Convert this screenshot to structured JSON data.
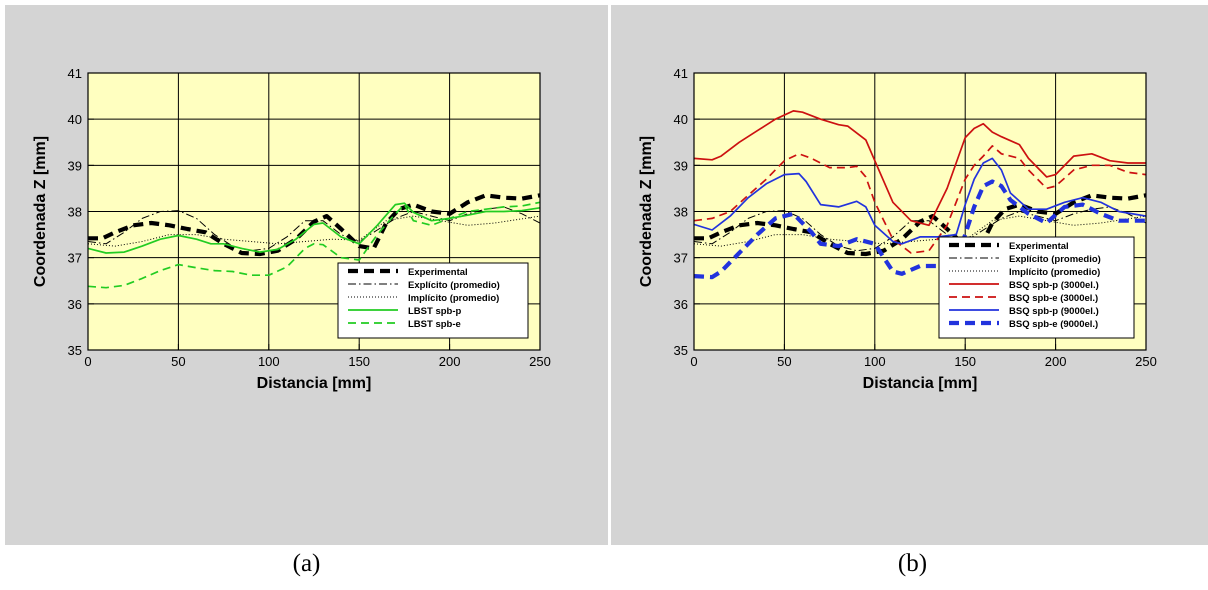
{
  "chart_data": [
    {
      "type": "line",
      "caption": "(a)",
      "xlabel": "Distancia [mm]",
      "ylabel": "Coordenada Z [mm]",
      "xlim": [
        0,
        250
      ],
      "ylim": [
        35,
        41
      ],
      "xticks": [
        0,
        50,
        100,
        150,
        200,
        250
      ],
      "yticks": [
        35,
        36,
        37,
        38,
        39,
        40,
        41
      ],
      "grid": true,
      "legend_position": "bottom-right",
      "colors": {
        "plot_background": "#ffffc0",
        "panel_background": "#d4d4d4"
      },
      "series": [
        {
          "name": "Experimental",
          "color": "#000000",
          "style": "dashed-thick",
          "x": [
            0,
            8,
            15,
            25,
            35,
            45,
            55,
            65,
            75,
            85,
            95,
            105,
            115,
            125,
            132,
            140,
            150,
            158,
            165,
            172,
            180,
            190,
            200,
            210,
            220,
            230,
            240,
            250
          ],
          "y": [
            37.42,
            37.42,
            37.55,
            37.7,
            37.75,
            37.7,
            37.62,
            37.55,
            37.3,
            37.1,
            37.08,
            37.15,
            37.4,
            37.78,
            37.9,
            37.62,
            37.25,
            37.2,
            37.75,
            38.05,
            38.15,
            38.0,
            37.95,
            38.2,
            38.35,
            38.3,
            38.28,
            38.35
          ]
        },
        {
          "name": "Explícito (promedio)",
          "color": "#000000",
          "style": "dash-dot",
          "x": [
            0,
            10,
            20,
            30,
            40,
            50,
            60,
            70,
            80,
            90,
            100,
            110,
            120,
            130,
            140,
            150,
            160,
            170,
            180,
            190,
            200,
            210,
            220,
            230,
            240,
            250
          ],
          "y": [
            37.35,
            37.3,
            37.55,
            37.85,
            38.0,
            38.02,
            37.85,
            37.5,
            37.25,
            37.15,
            37.2,
            37.45,
            37.8,
            37.8,
            37.5,
            37.35,
            37.6,
            37.85,
            38.0,
            37.9,
            37.8,
            37.95,
            38.05,
            38.1,
            37.95,
            37.75
          ]
        },
        {
          "name": "Implícito (promedio)",
          "color": "#000000",
          "style": "dotted",
          "x": [
            0,
            15,
            30,
            45,
            60,
            75,
            90,
            105,
            120,
            135,
            150,
            165,
            180,
            195,
            210,
            225,
            250
          ],
          "y": [
            37.3,
            37.25,
            37.35,
            37.5,
            37.5,
            37.4,
            37.35,
            37.3,
            37.35,
            37.4,
            37.38,
            37.8,
            37.9,
            37.8,
            37.7,
            37.75,
            37.9
          ]
        },
        {
          "name": "LBST spb-p",
          "color": "#22cc22",
          "style": "solid",
          "x": [
            0,
            10,
            20,
            30,
            40,
            50,
            60,
            68,
            75,
            85,
            95,
            105,
            115,
            125,
            130,
            140,
            150,
            160,
            170,
            175,
            180,
            190,
            200,
            210,
            220,
            230,
            240,
            250
          ],
          "y": [
            37.2,
            37.1,
            37.12,
            37.25,
            37.4,
            37.48,
            37.4,
            37.3,
            37.3,
            37.2,
            37.12,
            37.18,
            37.4,
            37.72,
            37.75,
            37.45,
            37.3,
            37.7,
            38.15,
            38.18,
            37.98,
            37.8,
            37.85,
            37.92,
            38.0,
            38.0,
            38.02,
            38.08
          ]
        },
        {
          "name": "LBST spb-e",
          "color": "#22cc22",
          "style": "dashed",
          "x": [
            0,
            10,
            20,
            30,
            40,
            50,
            60,
            70,
            80,
            90,
            100,
            110,
            120,
            125,
            130,
            140,
            150,
            160,
            170,
            175,
            180,
            190,
            200,
            210,
            220,
            230,
            240,
            250
          ],
          "y": [
            36.38,
            36.35,
            36.4,
            36.55,
            36.72,
            36.85,
            36.78,
            36.72,
            36.7,
            36.62,
            36.62,
            36.8,
            37.2,
            37.3,
            37.28,
            37.0,
            36.95,
            37.5,
            37.95,
            38.15,
            37.8,
            37.7,
            37.85,
            38.0,
            38.05,
            38.1,
            38.12,
            38.2
          ]
        }
      ]
    },
    {
      "type": "line",
      "caption": "(b)",
      "xlabel": "Distancia [mm]",
      "ylabel": "Coordenada Z [mm]",
      "xlim": [
        0,
        250
      ],
      "ylim": [
        35,
        41
      ],
      "xticks": [
        0,
        50,
        100,
        150,
        200,
        250
      ],
      "yticks": [
        35,
        36,
        37,
        38,
        39,
        40,
        41
      ],
      "grid": true,
      "legend_position": "bottom-right",
      "colors": {
        "plot_background": "#ffffc0",
        "panel_background": "#d4d4d4"
      },
      "series": [
        {
          "name": "Experimental",
          "color": "#000000",
          "style": "dashed-thick",
          "x": [
            0,
            8,
            15,
            25,
            35,
            45,
            55,
            65,
            75,
            85,
            95,
            105,
            115,
            125,
            132,
            140,
            150,
            158,
            165,
            172,
            180,
            190,
            200,
            210,
            220,
            230,
            240,
            250
          ],
          "y": [
            37.42,
            37.42,
            37.55,
            37.7,
            37.75,
            37.7,
            37.62,
            37.55,
            37.3,
            37.1,
            37.08,
            37.15,
            37.4,
            37.78,
            37.9,
            37.62,
            37.25,
            37.2,
            37.75,
            38.05,
            38.15,
            38.0,
            37.95,
            38.2,
            38.35,
            38.3,
            38.28,
            38.35
          ]
        },
        {
          "name": "Explícito (promedio)",
          "color": "#000000",
          "style": "dash-dot",
          "x": [
            0,
            10,
            20,
            30,
            40,
            50,
            60,
            70,
            80,
            90,
            100,
            110,
            120,
            130,
            140,
            150,
            160,
            170,
            180,
            190,
            200,
            210,
            220,
            230,
            240,
            250
          ],
          "y": [
            37.35,
            37.3,
            37.55,
            37.85,
            38.0,
            38.02,
            37.85,
            37.5,
            37.25,
            37.15,
            37.2,
            37.45,
            37.8,
            37.8,
            37.5,
            37.35,
            37.6,
            37.85,
            38.0,
            37.9,
            37.8,
            37.95,
            38.05,
            38.1,
            37.95,
            37.75
          ]
        },
        {
          "name": "Implícito (promedio)",
          "color": "#000000",
          "style": "dotted",
          "x": [
            0,
            15,
            30,
            45,
            60,
            75,
            90,
            105,
            120,
            135,
            150,
            165,
            180,
            195,
            210,
            225,
            250
          ],
          "y": [
            37.3,
            37.25,
            37.35,
            37.5,
            37.5,
            37.4,
            37.35,
            37.3,
            37.35,
            37.4,
            37.38,
            37.8,
            37.9,
            37.8,
            37.7,
            37.75,
            37.9
          ]
        },
        {
          "name": "BSQ spb-p (3000el.)",
          "color": "#cc1111",
          "style": "solid",
          "x": [
            0,
            10,
            15,
            25,
            35,
            45,
            55,
            60,
            70,
            80,
            85,
            95,
            100,
            110,
            120,
            130,
            140,
            150,
            155,
            160,
            165,
            170,
            180,
            185,
            195,
            200,
            210,
            220,
            230,
            240,
            250
          ],
          "y": [
            39.15,
            39.12,
            39.2,
            39.5,
            39.75,
            40.0,
            40.18,
            40.15,
            40.0,
            39.88,
            39.85,
            39.55,
            39.1,
            38.2,
            37.8,
            37.7,
            38.5,
            39.6,
            39.8,
            39.9,
            39.72,
            39.62,
            39.45,
            39.15,
            38.75,
            38.8,
            39.2,
            39.25,
            39.1,
            39.05,
            39.05
          ]
        },
        {
          "name": "BSQ spb-e (3000el.)",
          "color": "#cc1111",
          "style": "dashed",
          "x": [
            0,
            10,
            20,
            30,
            40,
            50,
            58,
            65,
            75,
            85,
            90,
            95,
            100,
            110,
            120,
            130,
            140,
            150,
            155,
            160,
            165,
            170,
            180,
            185,
            195,
            200,
            210,
            220,
            230,
            240,
            250
          ],
          "y": [
            37.8,
            37.85,
            38.0,
            38.35,
            38.7,
            39.1,
            39.25,
            39.15,
            38.95,
            38.95,
            38.98,
            38.75,
            38.2,
            37.4,
            37.1,
            37.15,
            37.7,
            38.7,
            39.0,
            39.2,
            39.42,
            39.25,
            39.15,
            38.9,
            38.5,
            38.55,
            38.9,
            39.0,
            39.0,
            38.85,
            38.8
          ]
        },
        {
          "name": "BSQ spb-p (9000el.)",
          "color": "#2233dd",
          "style": "solid",
          "x": [
            0,
            10,
            20,
            30,
            40,
            50,
            58,
            62,
            70,
            80,
            90,
            95,
            100,
            110,
            115,
            125,
            135,
            145,
            150,
            155,
            160,
            165,
            170,
            175,
            185,
            195,
            205,
            215,
            225,
            235,
            250
          ],
          "y": [
            37.72,
            37.6,
            37.9,
            38.3,
            38.6,
            38.8,
            38.82,
            38.65,
            38.15,
            38.1,
            38.22,
            38.1,
            37.7,
            37.35,
            37.3,
            37.45,
            37.45,
            37.5,
            38.15,
            38.7,
            39.05,
            39.15,
            38.9,
            38.4,
            38.05,
            38.05,
            38.2,
            38.3,
            38.2,
            38.0,
            37.9
          ]
        },
        {
          "name": "BSQ spb-e (9000el.)",
          "color": "#2233dd",
          "style": "dashed-thick",
          "x": [
            0,
            10,
            15,
            25,
            35,
            45,
            55,
            65,
            70,
            80,
            90,
            100,
            105,
            110,
            115,
            125,
            135,
            145,
            150,
            155,
            160,
            165,
            170,
            175,
            185,
            195,
            205,
            215,
            225,
            235,
            250
          ],
          "y": [
            36.6,
            36.58,
            36.7,
            37.1,
            37.5,
            37.85,
            37.95,
            37.55,
            37.3,
            37.25,
            37.4,
            37.3,
            37.0,
            36.7,
            36.65,
            36.82,
            36.82,
            36.95,
            37.5,
            38.1,
            38.55,
            38.65,
            38.55,
            38.25,
            37.95,
            37.75,
            38.1,
            38.15,
            37.95,
            37.8,
            37.8
          ]
        }
      ]
    }
  ]
}
